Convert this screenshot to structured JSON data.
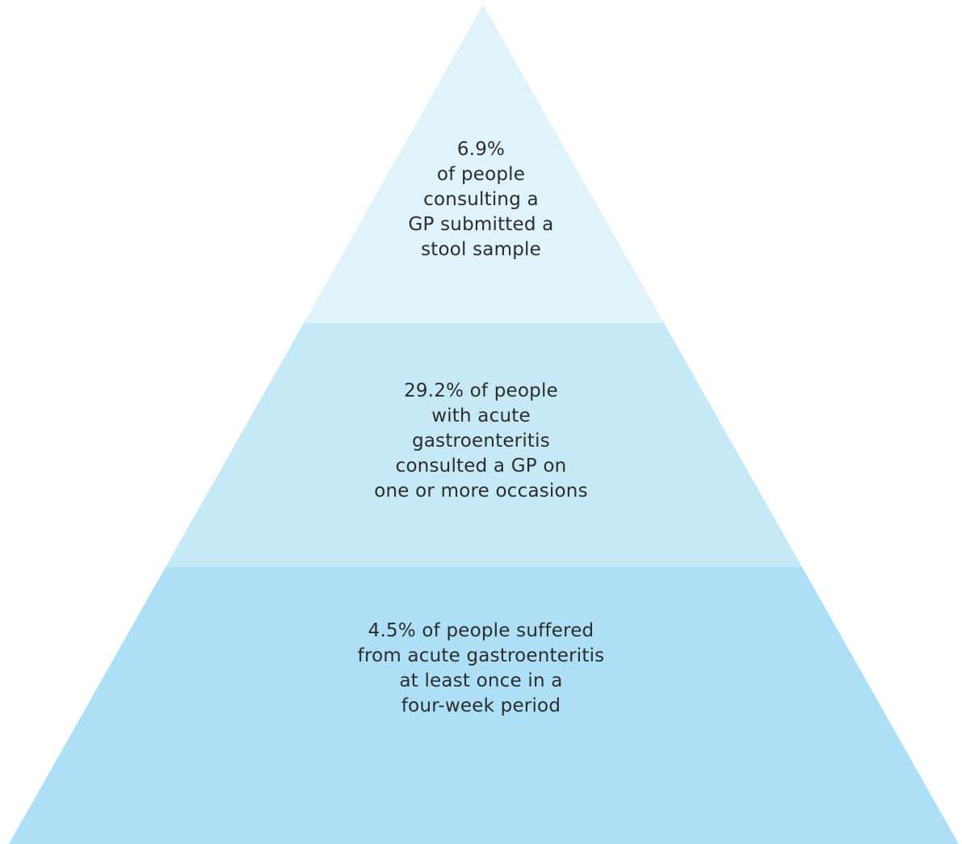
{
  "pyramid": {
    "tiers": [
      {
        "id": "top",
        "color": "#e0f3fb",
        "lines": [
          "6.9%",
          "of people",
          "consulting a",
          "GP submitted a",
          "stool sample"
        ]
      },
      {
        "id": "middle",
        "color": "#c6e9f8",
        "lines": [
          "29.2% of people",
          "with acute",
          "gastroenteritis",
          "consulted a GP on",
          "one or more occasions"
        ]
      },
      {
        "id": "bottom",
        "color": "#ade0f6",
        "lines": [
          "4.5% of people suffered",
          "from acute gastroenteritis",
          "at least once in a",
          "four-week period"
        ]
      }
    ]
  }
}
